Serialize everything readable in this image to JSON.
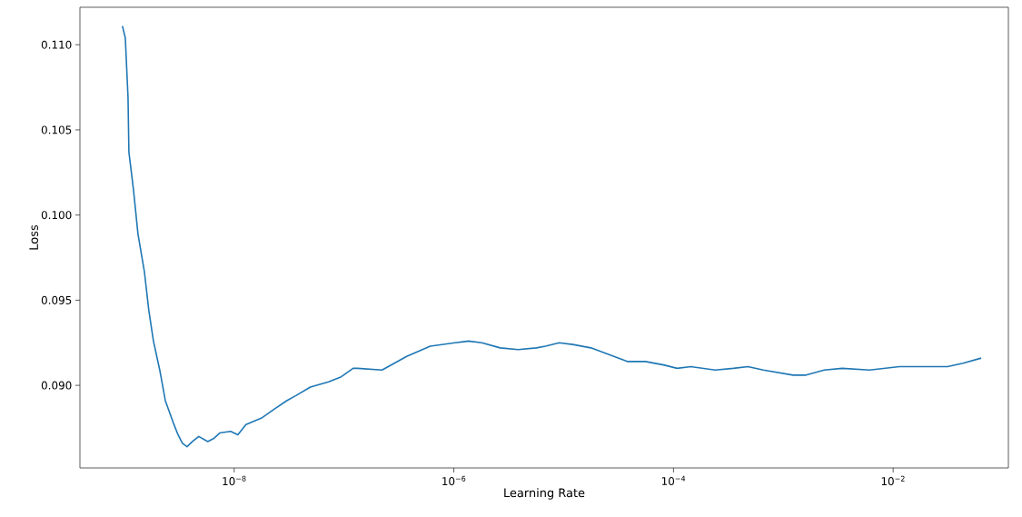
{
  "chart_data": {
    "type": "line",
    "xlabel": "Learning Rate",
    "ylabel": "Loss",
    "log": "x",
    "grid": false,
    "marker": "none",
    "line_style": "solid",
    "xlim": [
      3.94e-10,
      0.112
    ],
    "ylim": [
      0.08515,
      0.1122
    ],
    "xticks": [
      {
        "value": 1e-08,
        "label": "10$^{−8}$"
      },
      {
        "value": 1e-06,
        "label": "10$^{−6}$"
      },
      {
        "value": 0.0001,
        "label": "10$^{−4}$"
      },
      {
        "value": 0.01,
        "label": "10$^{−2}$"
      }
    ],
    "yticks": [
      {
        "value": 0.09,
        "label": "0.090"
      },
      {
        "value": 0.095,
        "label": "0.095"
      },
      {
        "value": 0.1,
        "label": "0.100"
      },
      {
        "value": 0.105,
        "label": "0.105"
      },
      {
        "value": 0.11,
        "label": "0.110"
      }
    ],
    "series": [
      {
        "color": "#1f77b4",
        "x": [
          9.6e-10,
          1.02e-09,
          1.08e-09,
          1.1e-09,
          1.21e-09,
          1.33e-09,
          1.52e-09,
          1.67e-09,
          1.84e-09,
          2.1e-09,
          2.36e-09,
          2.79e-09,
          3.08e-09,
          3.38e-09,
          3.72e-09,
          4.17e-09,
          4.76e-09,
          5.75e-09,
          6.58e-09,
          7.38e-09,
          9.27e-09,
          1.08e-08,
          1.28e-08,
          1.8e-08,
          2.31e-08,
          3.01e-08,
          3.65e-08,
          4.94e-08,
          7.24e-08,
          9.44e-08,
          1.21e-07,
          1.33e-07,
          2.22e-07,
          3.72e-07,
          6.1e-07,
          1.02e-06,
          1.36e-06,
          1.8e-06,
          2.64e-06,
          3.86e-06,
          5.65e-06,
          6.84e-06,
          9.1e-06,
          1.21e-05,
          1.77e-05,
          2.59e-05,
          3.79e-05,
          5.55e-05,
          8.11e-05,
          0.000108,
          0.000144,
          0.00024,
          0.000351,
          0.000476,
          0.000658,
          0.00123,
          0.00161,
          0.00236,
          0.00344,
          0.0061,
          0.0114,
          0.0259,
          0.0313,
          0.0433,
          0.0634
        ],
        "values": [
          0.1111,
          0.1104,
          0.1069,
          0.1037,
          0.1015,
          0.0989,
          0.0967,
          0.0944,
          0.0926,
          0.0909,
          0.0891,
          0.0878,
          0.0871,
          0.0866,
          0.0864,
          0.0867,
          0.087,
          0.0867,
          0.0869,
          0.0872,
          0.0873,
          0.0871,
          0.0877,
          0.0881,
          0.0886,
          0.0891,
          0.0894,
          0.0899,
          0.0902,
          0.0905,
          0.091,
          0.091,
          0.0909,
          0.0917,
          0.0923,
          0.0925,
          0.0926,
          0.0925,
          0.0922,
          0.0921,
          0.0922,
          0.0923,
          0.0925,
          0.0924,
          0.0922,
          0.0918,
          0.0914,
          0.0914,
          0.0912,
          0.091,
          0.0911,
          0.0909,
          0.091,
          0.0911,
          0.0909,
          0.0906,
          0.0906,
          0.0909,
          0.091,
          0.0909,
          0.0911,
          0.0911,
          0.0911,
          0.0913,
          0.0916
        ]
      }
    ]
  }
}
